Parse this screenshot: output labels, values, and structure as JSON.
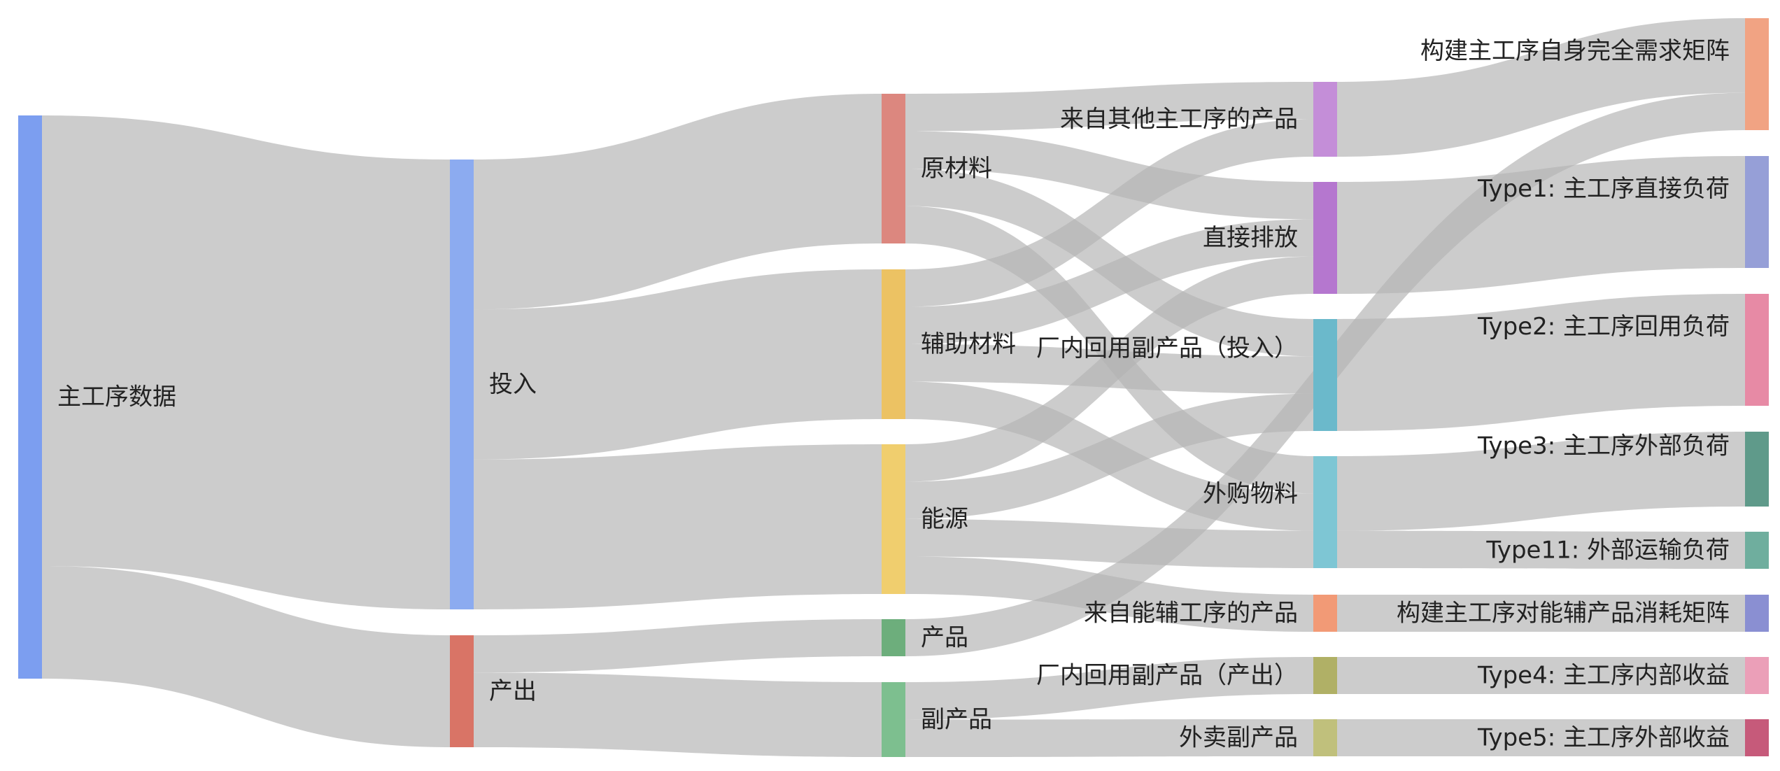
{
  "nodes": [
    {
      "id": "main",
      "label": "主工序数据",
      "color": "#7c9ef0"
    },
    {
      "id": "input",
      "label": "投入",
      "color": "#8cabf0"
    },
    {
      "id": "output",
      "label": "产出",
      "color": "#d97466"
    },
    {
      "id": "raw",
      "label": "原材料",
      "color": "#dc877f"
    },
    {
      "id": "aux",
      "label": "辅助材料",
      "color": "#ecc263"
    },
    {
      "id": "energy",
      "label": "能源",
      "color": "#f0ce6e"
    },
    {
      "id": "product",
      "label": "产品",
      "color": "#6dae7c"
    },
    {
      "id": "byprod",
      "label": "副产品",
      "color": "#7dbf8f"
    },
    {
      "id": "fromOther",
      "label": "来自其他主工序的产品",
      "color": "#c48ed8"
    },
    {
      "id": "direct",
      "label": "直接排放",
      "color": "#b577cf"
    },
    {
      "id": "recycleIn",
      "label": "厂内回用副产品（投入）",
      "color": "#6bb9cb"
    },
    {
      "id": "purchased",
      "label": "外购物料",
      "color": "#7ec6d4"
    },
    {
      "id": "fromEnergy",
      "label": "来自能辅工序的产品",
      "color": "#f29a76"
    },
    {
      "id": "recycleOut",
      "label": "厂内回用副产品（产出）",
      "color": "#b0b066"
    },
    {
      "id": "sold",
      "label": "外卖副产品",
      "color": "#c0c07c"
    },
    {
      "id": "matrix",
      "label": "构建主工序自身完全需求矩阵",
      "color": "#f1a383"
    },
    {
      "id": "t1",
      "label": "Type1: 主工序直接负荷",
      "color": "#969fd7"
    },
    {
      "id": "t2",
      "label": "Type2: 主工序回用负荷",
      "color": "#e78aa5"
    },
    {
      "id": "t3",
      "label": "Type3: 主工序外部负荷",
      "color": "#5f9a8a"
    },
    {
      "id": "t11",
      "label": "Type11: 外部运输负荷",
      "color": "#6fae9e"
    },
    {
      "id": "energyMat",
      "label": "构建主工序对能辅产品消耗矩阵",
      "color": "#8a8fd2"
    },
    {
      "id": "t4",
      "label": "Type4: 主工序内部收益",
      "color": "#eb9fb8"
    },
    {
      "id": "t5",
      "label": "Type5: 主工序外部收益",
      "color": "#c65a7a"
    }
  ],
  "links": [
    {
      "source": "main",
      "target": "input",
      "value": 12
    },
    {
      "source": "main",
      "target": "output",
      "value": 3
    },
    {
      "source": "input",
      "target": "raw",
      "value": 4
    },
    {
      "source": "input",
      "target": "aux",
      "value": 4
    },
    {
      "source": "input",
      "target": "energy",
      "value": 4
    },
    {
      "source": "output",
      "target": "product",
      "value": 1
    },
    {
      "source": "output",
      "target": "byprod",
      "value": 2
    },
    {
      "source": "raw",
      "target": "fromOther",
      "value": 1
    },
    {
      "source": "raw",
      "target": "direct",
      "value": 1
    },
    {
      "source": "raw",
      "target": "recycleIn",
      "value": 1
    },
    {
      "source": "raw",
      "target": "purchased",
      "value": 1
    },
    {
      "source": "aux",
      "target": "fromOther",
      "value": 1
    },
    {
      "source": "aux",
      "target": "direct",
      "value": 1
    },
    {
      "source": "aux",
      "target": "recycleIn",
      "value": 1
    },
    {
      "source": "aux",
      "target": "purchased",
      "value": 1
    },
    {
      "source": "energy",
      "target": "direct",
      "value": 1
    },
    {
      "source": "energy",
      "target": "recycleIn",
      "value": 1
    },
    {
      "source": "energy",
      "target": "purchased",
      "value": 1
    },
    {
      "source": "energy",
      "target": "fromEnergy",
      "value": 1
    },
    {
      "source": "product",
      "target": "matrix",
      "value": 1
    },
    {
      "source": "byprod",
      "target": "recycleOut",
      "value": 1
    },
    {
      "source": "byprod",
      "target": "sold",
      "value": 1
    },
    {
      "source": "fromOther",
      "target": "matrix",
      "value": 2
    },
    {
      "source": "direct",
      "target": "t1",
      "value": 3
    },
    {
      "source": "recycleIn",
      "target": "t2",
      "value": 3
    },
    {
      "source": "purchased",
      "target": "t3",
      "value": 2
    },
    {
      "source": "purchased",
      "target": "t11",
      "value": 1
    },
    {
      "source": "fromEnergy",
      "target": "energyMat",
      "value": 1
    },
    {
      "source": "recycleOut",
      "target": "t4",
      "value": 1
    },
    {
      "source": "sold",
      "target": "t5",
      "value": 1
    }
  ]
}
